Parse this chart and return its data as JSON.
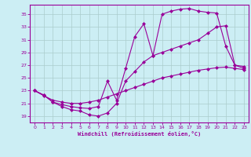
{
  "xlabel": "Windchill (Refroidissement éolien,°C)",
  "background_color": "#cceef4",
  "line_color": "#990099",
  "xlim": [
    -0.5,
    23.5
  ],
  "ylim": [
    18.0,
    36.5
  ],
  "yticks": [
    19,
    21,
    23,
    25,
    27,
    29,
    31,
    33,
    35
  ],
  "xticks": [
    0,
    1,
    2,
    3,
    4,
    5,
    6,
    7,
    8,
    9,
    10,
    11,
    12,
    13,
    14,
    15,
    16,
    17,
    18,
    19,
    20,
    21,
    22,
    23
  ],
  "grid_color": "#aacccc",
  "line1_x": [
    0,
    1,
    2,
    3,
    4,
    5,
    6,
    7,
    8,
    9,
    10,
    11,
    12,
    13,
    14,
    15,
    16,
    17,
    18,
    19,
    20,
    21,
    22,
    23
  ],
  "line1_y": [
    23,
    22.2,
    21.5,
    21.2,
    21.0,
    21.0,
    21.2,
    21.5,
    22.0,
    22.5,
    23.0,
    23.5,
    24.0,
    24.5,
    25.0,
    25.3,
    25.6,
    25.9,
    26.2,
    26.4,
    26.6,
    26.7,
    26.5,
    26.3
  ],
  "line2_x": [
    0,
    1,
    2,
    3,
    4,
    5,
    6,
    7,
    8,
    9,
    10,
    11,
    12,
    13,
    14,
    15,
    16,
    17,
    18,
    19,
    20,
    21,
    22,
    23
  ],
  "line2_y": [
    23,
    22.3,
    21.2,
    20.5,
    20.0,
    19.8,
    19.2,
    19.0,
    19.5,
    21.0,
    24.5,
    26.0,
    27.5,
    28.5,
    29.0,
    29.5,
    30.0,
    30.5,
    31.0,
    32.0,
    33.0,
    33.2,
    27.0,
    26.8
  ],
  "line3_x": [
    0,
    1,
    2,
    3,
    4,
    5,
    6,
    7,
    8,
    9,
    10,
    11,
    12,
    13,
    14,
    15,
    16,
    17,
    18,
    19,
    20,
    21,
    22,
    23
  ],
  "line3_y": [
    23,
    22.3,
    21.2,
    20.8,
    20.5,
    20.3,
    20.2,
    20.5,
    24.5,
    21.5,
    26.5,
    31.5,
    33.5,
    28.5,
    35.0,
    35.5,
    35.8,
    35.9,
    35.5,
    35.3,
    35.2,
    30.0,
    27.0,
    26.5
  ]
}
